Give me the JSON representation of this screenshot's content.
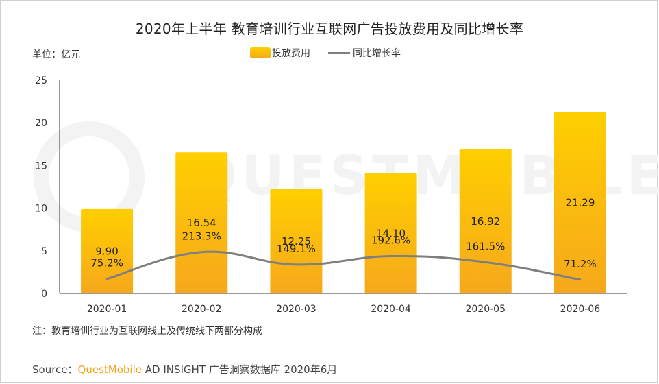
{
  "title": "2020年上半年 教育培训行业互联网广告投放费用及同比增长率",
  "unit_label": "单位：亿元",
  "legend": {
    "bar": "投放费用",
    "line": "同比增长率"
  },
  "note": "注：教育培训行业为互联网线上及传统线下两部分构成",
  "source": {
    "prefix": "Source：",
    "brand": "QuestMobile",
    "suffix": " AD INSIGHT 广告洞察数据库 2020年6月"
  },
  "watermark": "QUESTMOBILE",
  "colors": {
    "bar_top": "#ffcf00",
    "bar_bottom": "#f6a81c",
    "line": "#7f7f7f",
    "brand": "#f3a51b"
  },
  "chart_data": {
    "type": "bar",
    "categories": [
      "2020-01",
      "2020-02",
      "2020-03",
      "2020-04",
      "2020-05",
      "2020-06"
    ],
    "series": [
      {
        "name": "投放费用",
        "type": "bar",
        "values": [
          9.9,
          16.54,
          12.25,
          14.1,
          16.92,
          21.29
        ]
      },
      {
        "name": "同比增长率",
        "type": "line",
        "values": [
          75.2,
          213.3,
          149.1,
          192.6,
          161.5,
          71.2
        ],
        "unit": "%"
      }
    ],
    "bar_labels": [
      "9.90",
      "16.54",
      "12.25",
      "14.10",
      "16.92",
      "21.29"
    ],
    "line_labels": [
      "75.2%",
      "213.3%",
      "149.1%",
      "192.6%",
      "161.5%",
      "71.2%"
    ],
    "ylim": [
      0,
      25
    ],
    "yticks": [
      "0",
      "5",
      "10",
      "15",
      "20",
      "25"
    ],
    "legend_position": "top-center",
    "grid": false
  }
}
